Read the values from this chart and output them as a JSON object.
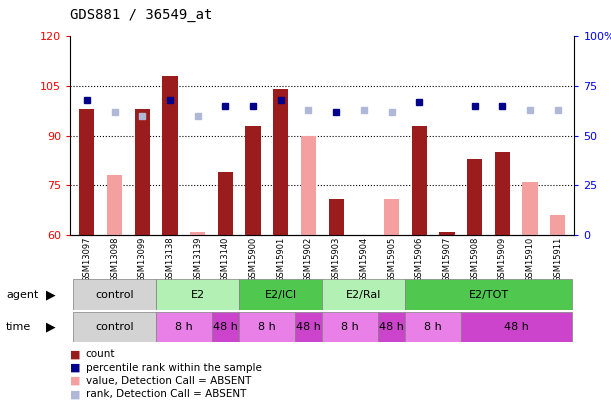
{
  "title": "GDS881 / 36549_at",
  "samples": [
    "GSM13097",
    "GSM13098",
    "GSM13099",
    "GSM13138",
    "GSM13139",
    "GSM13140",
    "GSM15900",
    "GSM15901",
    "GSM15902",
    "GSM15903",
    "GSM15904",
    "GSM15905",
    "GSM15906",
    "GSM15907",
    "GSM15908",
    "GSM15909",
    "GSM15910",
    "GSM15911"
  ],
  "count_values": [
    98,
    null,
    98,
    108,
    null,
    79,
    93,
    104,
    null,
    71,
    null,
    null,
    93,
    61,
    83,
    85,
    null,
    null
  ],
  "count_absent": [
    null,
    78,
    null,
    null,
    61,
    null,
    null,
    null,
    90,
    null,
    null,
    71,
    null,
    null,
    null,
    null,
    76,
    66
  ],
  "rank_values": [
    68,
    null,
    null,
    68,
    null,
    65,
    65,
    68,
    null,
    62,
    null,
    null,
    67,
    null,
    65,
    65,
    null,
    null
  ],
  "rank_absent": [
    null,
    62,
    60,
    null,
    60,
    null,
    null,
    null,
    63,
    null,
    63,
    62,
    null,
    null,
    null,
    null,
    63,
    63
  ],
  "ylim_left": [
    60,
    120
  ],
  "ylim_right": [
    0,
    100
  ],
  "yticks_left": [
    60,
    75,
    90,
    105,
    120
  ],
  "yticks_right": [
    0,
    25,
    50,
    75,
    100
  ],
  "ytick_labels_right": [
    "0",
    "25",
    "50",
    "75",
    "100%"
  ],
  "bar_color_present": "#9b1c1c",
  "bar_color_absent": "#f4a0a0",
  "dot_color_present": "#00008b",
  "dot_color_absent": "#b0b8d8",
  "agent_row_color_control": "#d3d3d3",
  "agent_row_color_light_green": "#b3f0b3",
  "agent_row_color_green": "#50c850",
  "time_row_color_control": "#d3d3d3",
  "time_row_color_light_magenta": "#e880e8",
  "time_row_color_magenta": "#cc44cc",
  "legend_labels": [
    "count",
    "percentile rank within the sample",
    "value, Detection Call = ABSENT",
    "rank, Detection Call = ABSENT"
  ],
  "legend_colors": [
    "#9b1c1c",
    "#00008b",
    "#f4a0a0",
    "#b0b8d8"
  ]
}
